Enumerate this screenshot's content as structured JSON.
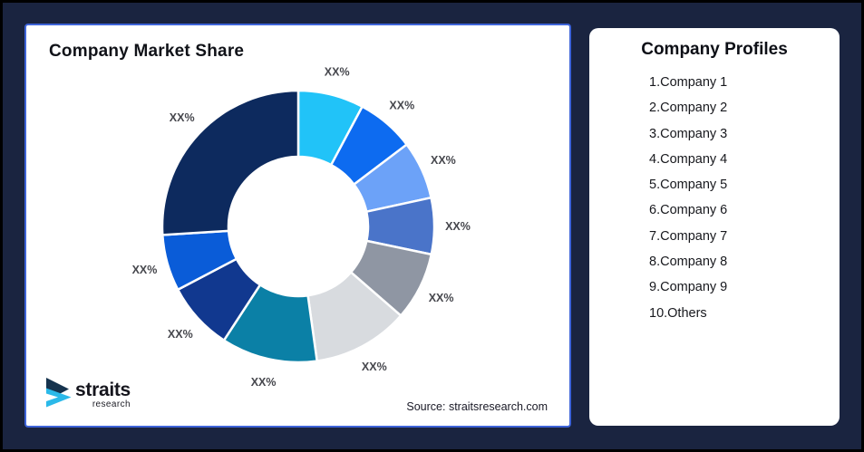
{
  "page": {
    "background_color": "#1A2440",
    "source_note": "Source: straitsresearch.com"
  },
  "chart_card": {
    "title": "Company Market Share",
    "border_color": "#3E64D9"
  },
  "logo": {
    "name": "straits",
    "sub": "research",
    "icon_dark_color": "#16334E",
    "icon_cyan_color": "#2BB9E9"
  },
  "profiles_card": {
    "title": "Company Profiles",
    "items": [
      "1.Company 1",
      "2.Company 2",
      "3.Company 3",
      "4.Company 4",
      "5.Company 5",
      "6.Company 6",
      "7.Company 7",
      "8.Company 8",
      "9.Company 9",
      "10.Others"
    ]
  },
  "chart_data": {
    "type": "pie",
    "style": "donut",
    "title": "Company Market Share",
    "start_angle_deg": 0,
    "direction": "clockwise",
    "inner_radius_ratio": 0.51,
    "slices": [
      {
        "name": "Company 1",
        "label": "XX%",
        "share_pct_est": 7.8,
        "color": "#21C3F8"
      },
      {
        "name": "Company 2",
        "label": "XX%",
        "share_pct_est": 6.9,
        "color": "#0D6BF0"
      },
      {
        "name": "Company 3",
        "label": "XX%",
        "share_pct_est": 6.9,
        "color": "#6CA2F8"
      },
      {
        "name": "Company 4",
        "label": "XX%",
        "share_pct_est": 6.7,
        "color": "#4A74C9"
      },
      {
        "name": "Company 5",
        "label": "XX%",
        "share_pct_est": 8.1,
        "color": "#8F96A3"
      },
      {
        "name": "Company 6",
        "label": "XX%",
        "share_pct_est": 11.4,
        "color": "#D8DBDF"
      },
      {
        "name": "Company 7",
        "label": "XX%",
        "share_pct_est": 11.4,
        "color": "#0B80A6"
      },
      {
        "name": "Company 8",
        "label": "XX%",
        "share_pct_est": 8.1,
        "color": "#11388F"
      },
      {
        "name": "Company 9",
        "label": "XX%",
        "share_pct_est": 6.7,
        "color": "#0A5CD8"
      },
      {
        "name": "Others",
        "label": "XX%",
        "share_pct_est": 26.0,
        "color": "#0D2A5E"
      }
    ]
  }
}
